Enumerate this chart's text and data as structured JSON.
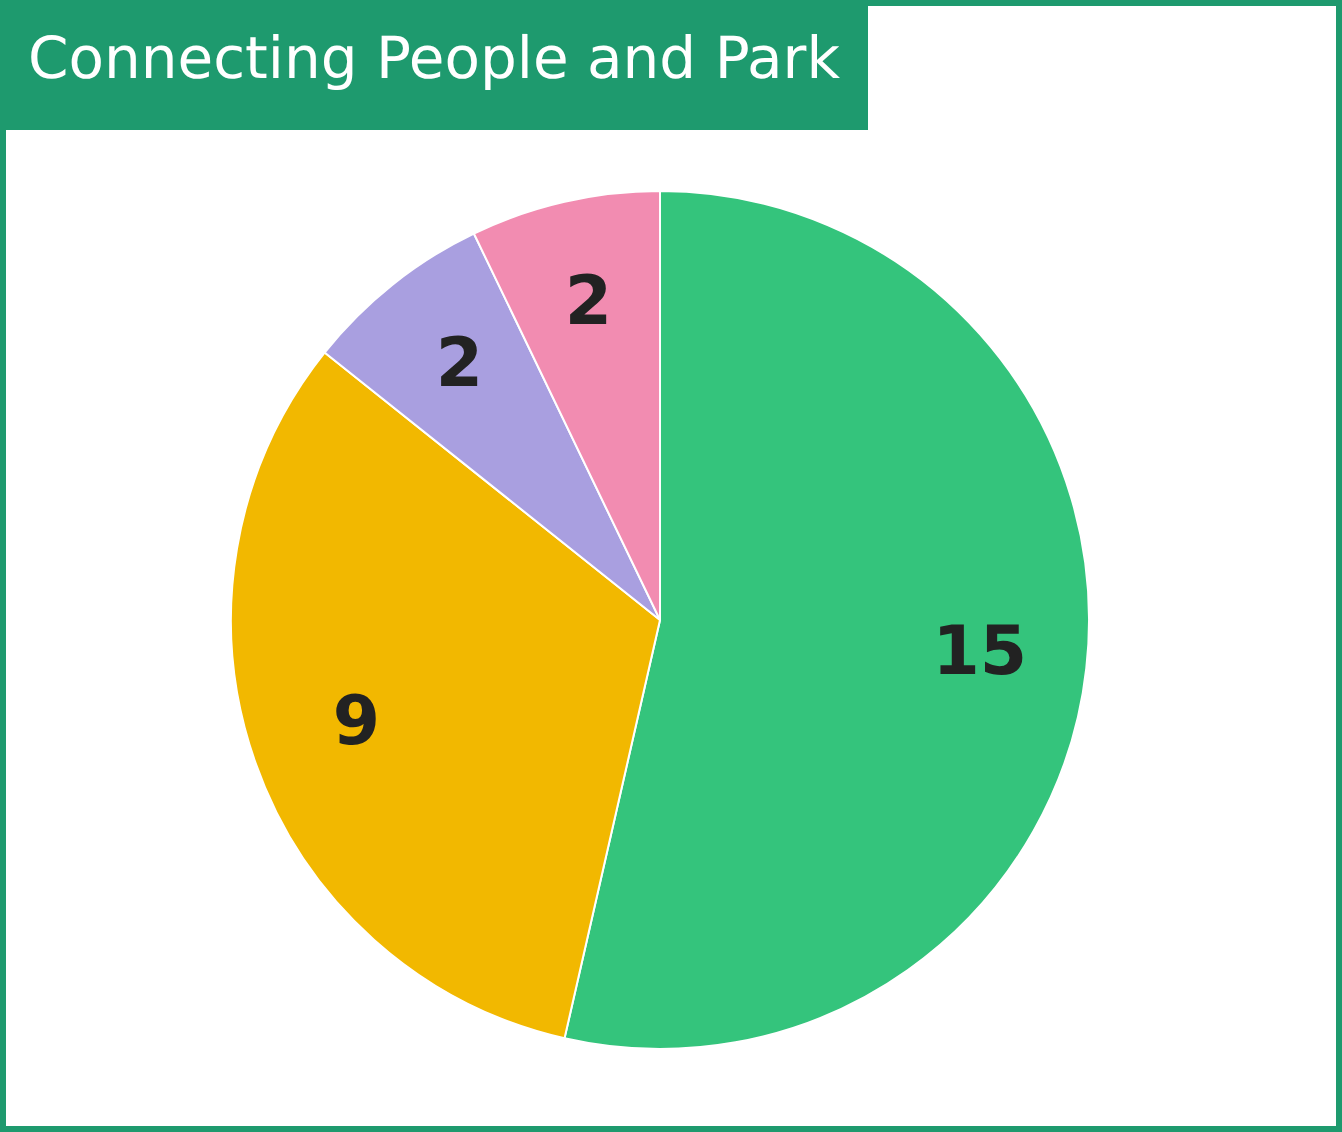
{
  "chart_data": {
    "type": "pie",
    "title": "Connecting People and Park",
    "categories": [
      null,
      null,
      null,
      null
    ],
    "values": [
      15,
      9,
      2,
      2
    ],
    "colors": [
      "#34c47c",
      "#f2b800",
      "#a99fe0",
      "#f28cb1"
    ],
    "data_labels": true,
    "legend": false
  }
}
